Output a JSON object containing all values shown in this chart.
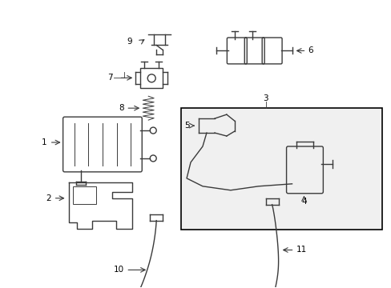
{
  "background_color": "#ffffff",
  "line_color": "#3a3a3a",
  "label_color": "#000000",
  "fig_width": 4.89,
  "fig_height": 3.6,
  "dpi": 100,
  "box_fill": "#f0f0f0"
}
